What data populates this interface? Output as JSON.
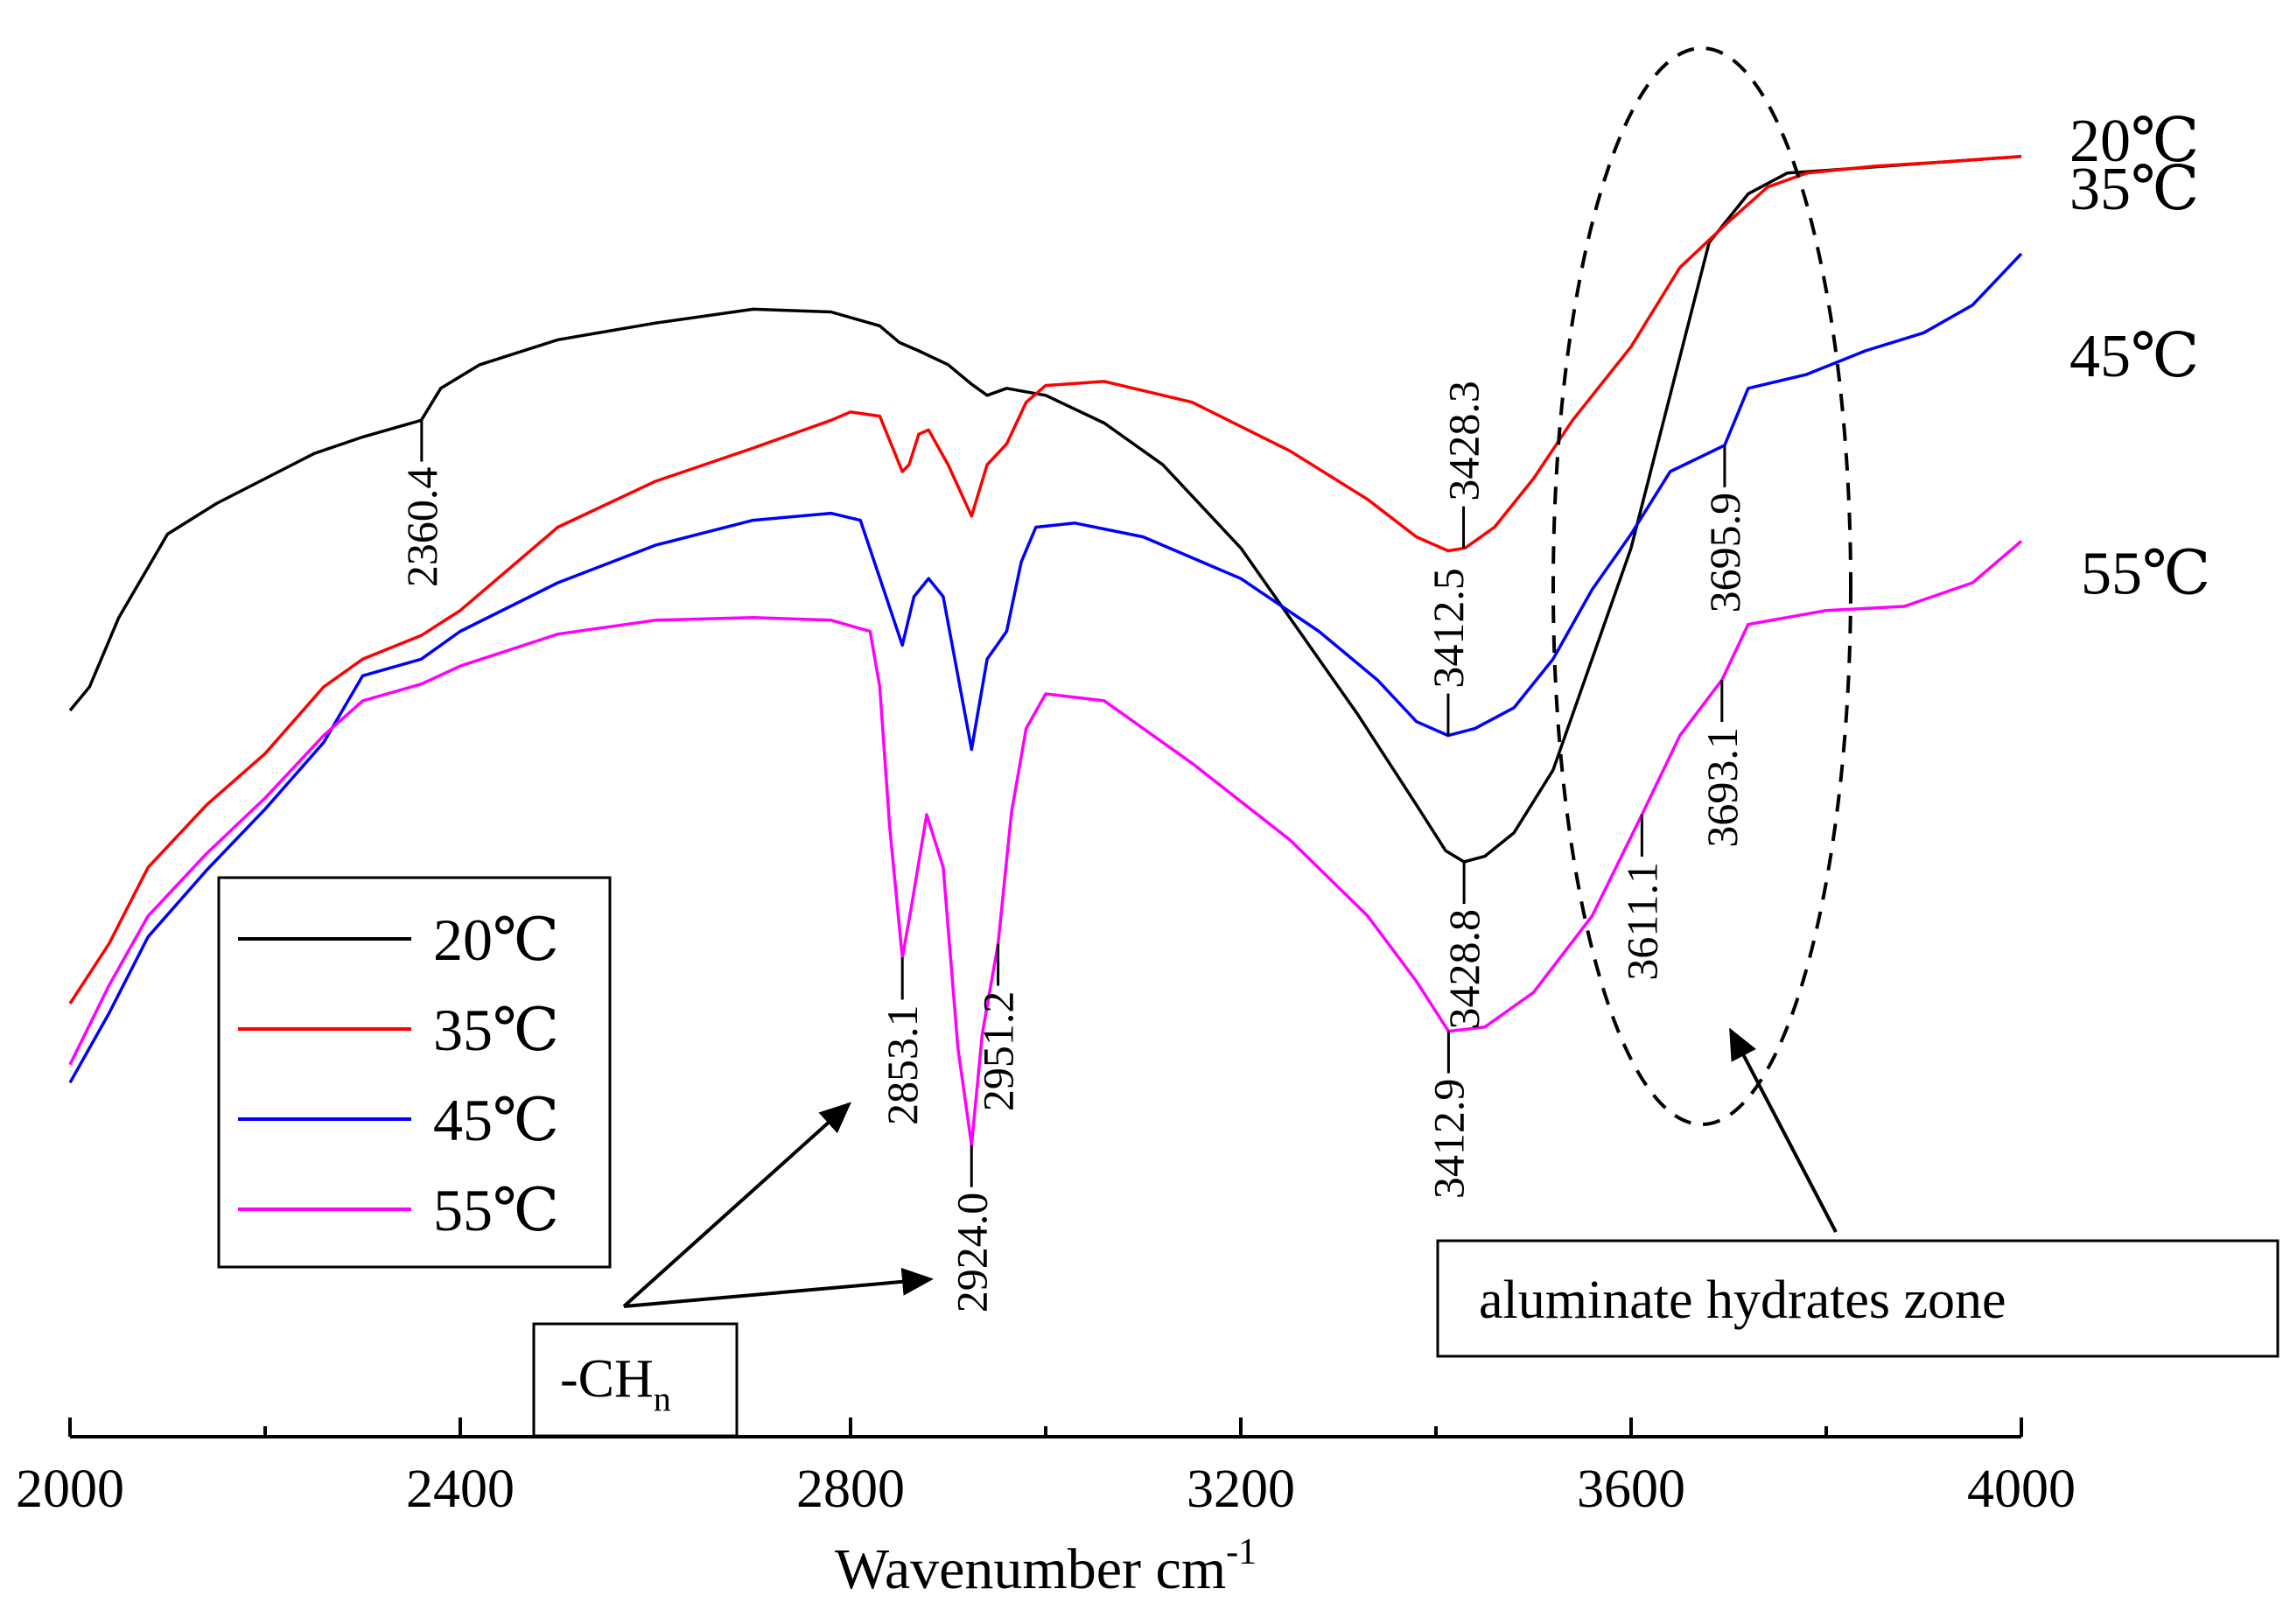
{
  "chart_data": {
    "type": "line",
    "xlabel": "Wavenumber cm",
    "xlabel_sup": "-1",
    "xlim": [
      2000,
      4000
    ],
    "xticks": [
      "2000",
      "2400",
      "2800",
      "3200",
      "3600",
      "4000"
    ],
    "xtick_values": [
      2000,
      2400,
      2800,
      3200,
      3600,
      4000
    ],
    "grid": false,
    "legend_placement": "lower-left",
    "series": [
      {
        "name": "20℃",
        "color": "#000000",
        "points": [
          [
            2000,
            0.477
          ],
          [
            2020,
            0.46
          ],
          [
            2050,
            0.41
          ],
          [
            2100,
            0.35
          ],
          [
            2150,
            0.328
          ],
          [
            2200,
            0.31
          ],
          [
            2250,
            0.292
          ],
          [
            2300,
            0.28
          ],
          [
            2340,
            0.272
          ],
          [
            2360,
            0.268
          ],
          [
            2380,
            0.245
          ],
          [
            2420,
            0.228
          ],
          [
            2500,
            0.21
          ],
          [
            2600,
            0.198
          ],
          [
            2700,
            0.188
          ],
          [
            2780,
            0.19
          ],
          [
            2830,
            0.2
          ],
          [
            2850,
            0.212
          ],
          [
            2870,
            0.218
          ],
          [
            2900,
            0.228
          ],
          [
            2924,
            0.242
          ],
          [
            2940,
            0.25
          ],
          [
            2960,
            0.245
          ],
          [
            3000,
            0.25
          ],
          [
            3060,
            0.27
          ],
          [
            3120,
            0.3
          ],
          [
            3200,
            0.36
          ],
          [
            3260,
            0.42
          ],
          [
            3320,
            0.48
          ],
          [
            3380,
            0.545
          ],
          [
            3410,
            0.578
          ],
          [
            3428.8,
            0.586
          ],
          [
            3450,
            0.582
          ],
          [
            3480,
            0.565
          ],
          [
            3520,
            0.52
          ],
          [
            3560,
            0.44
          ],
          [
            3600,
            0.36
          ],
          [
            3640,
            0.25
          ],
          [
            3680,
            0.14
          ],
          [
            3720,
            0.105
          ],
          [
            3760,
            0.09
          ],
          [
            3800,
            0.088
          ],
          [
            3860,
            0.085
          ],
          [
            3920,
            0.082
          ],
          [
            4000,
            0.078
          ]
        ]
      },
      {
        "name": "35℃",
        "color": "#ff0000",
        "points": [
          [
            2000,
            0.688
          ],
          [
            2040,
            0.645
          ],
          [
            2080,
            0.59
          ],
          [
            2140,
            0.545
          ],
          [
            2200,
            0.508
          ],
          [
            2260,
            0.46
          ],
          [
            2300,
            0.44
          ],
          [
            2360,
            0.423
          ],
          [
            2400,
            0.405
          ],
          [
            2500,
            0.345
          ],
          [
            2600,
            0.312
          ],
          [
            2700,
            0.288
          ],
          [
            2780,
            0.268
          ],
          [
            2800,
            0.262
          ],
          [
            2830,
            0.265
          ],
          [
            2853.1,
            0.305
          ],
          [
            2860,
            0.3
          ],
          [
            2870,
            0.278
          ],
          [
            2880,
            0.275
          ],
          [
            2900,
            0.3
          ],
          [
            2924,
            0.337
          ],
          [
            2940,
            0.3
          ],
          [
            2960,
            0.285
          ],
          [
            2980,
            0.255
          ],
          [
            3000,
            0.243
          ],
          [
            3060,
            0.24
          ],
          [
            3150,
            0.255
          ],
          [
            3250,
            0.29
          ],
          [
            3330,
            0.325
          ],
          [
            3380,
            0.352
          ],
          [
            3412.5,
            0.362
          ],
          [
            3430,
            0.36
          ],
          [
            3460,
            0.345
          ],
          [
            3500,
            0.31
          ],
          [
            3540,
            0.268
          ],
          [
            3600,
            0.215
          ],
          [
            3650,
            0.158
          ],
          [
            3700,
            0.125
          ],
          [
            3740,
            0.1
          ],
          [
            3780,
            0.09
          ],
          [
            3850,
            0.085
          ],
          [
            3920,
            0.082
          ],
          [
            4000,
            0.078
          ]
        ]
      },
      {
        "name": "45℃",
        "color": "#0000ff",
        "points": [
          [
            2000,
            0.745
          ],
          [
            2040,
            0.695
          ],
          [
            2080,
            0.64
          ],
          [
            2140,
            0.592
          ],
          [
            2200,
            0.548
          ],
          [
            2260,
            0.5
          ],
          [
            2300,
            0.452
          ],
          [
            2360,
            0.44
          ],
          [
            2400,
            0.42
          ],
          [
            2500,
            0.385
          ],
          [
            2600,
            0.358
          ],
          [
            2700,
            0.34
          ],
          [
            2780,
            0.335
          ],
          [
            2810,
            0.34
          ],
          [
            2853.1,
            0.43
          ],
          [
            2865,
            0.395
          ],
          [
            2880,
            0.382
          ],
          [
            2895,
            0.395
          ],
          [
            2924,
            0.505
          ],
          [
            2940,
            0.44
          ],
          [
            2960,
            0.42
          ],
          [
            2975,
            0.37
          ],
          [
            2990,
            0.345
          ],
          [
            3030,
            0.342
          ],
          [
            3100,
            0.352
          ],
          [
            3200,
            0.382
          ],
          [
            3280,
            0.42
          ],
          [
            3340,
            0.455
          ],
          [
            3380,
            0.485
          ],
          [
            3412.5,
            0.495
          ],
          [
            3440,
            0.49
          ],
          [
            3480,
            0.475
          ],
          [
            3520,
            0.44
          ],
          [
            3560,
            0.39
          ],
          [
            3600,
            0.35
          ],
          [
            3640,
            0.305
          ],
          [
            3695.9,
            0.286
          ],
          [
            3720,
            0.245
          ],
          [
            3780,
            0.235
          ],
          [
            3840,
            0.218
          ],
          [
            3900,
            0.205
          ],
          [
            3950,
            0.185
          ],
          [
            4000,
            0.148
          ]
        ]
      },
      {
        "name": "55℃",
        "color": "#ff00ff",
        "points": [
          [
            2000,
            0.732
          ],
          [
            2040,
            0.675
          ],
          [
            2080,
            0.625
          ],
          [
            2140,
            0.58
          ],
          [
            2200,
            0.54
          ],
          [
            2260,
            0.495
          ],
          [
            2300,
            0.47
          ],
          [
            2360,
            0.458
          ],
          [
            2400,
            0.445
          ],
          [
            2500,
            0.422
          ],
          [
            2600,
            0.412
          ],
          [
            2700,
            0.41
          ],
          [
            2780,
            0.412
          ],
          [
            2820,
            0.42
          ],
          [
            2830,
            0.46
          ],
          [
            2840,
            0.56
          ],
          [
            2853.1,
            0.655
          ],
          [
            2862,
            0.62
          ],
          [
            2878,
            0.552
          ],
          [
            2895,
            0.59
          ],
          [
            2910,
            0.72
          ],
          [
            2924,
            0.79
          ],
          [
            2935,
            0.71
          ],
          [
            2951.2,
            0.645
          ],
          [
            2965,
            0.55
          ],
          [
            2980,
            0.49
          ],
          [
            3000,
            0.465
          ],
          [
            3060,
            0.47
          ],
          [
            3150,
            0.515
          ],
          [
            3250,
            0.57
          ],
          [
            3330,
            0.625
          ],
          [
            3380,
            0.672
          ],
          [
            3412.9,
            0.708
          ],
          [
            3450,
            0.705
          ],
          [
            3500,
            0.68
          ],
          [
            3560,
            0.625
          ],
          [
            3611.1,
            0.552
          ],
          [
            3650,
            0.495
          ],
          [
            3693.1,
            0.455
          ],
          [
            3720,
            0.415
          ],
          [
            3800,
            0.405
          ],
          [
            3880,
            0.402
          ],
          [
            3950,
            0.385
          ],
          [
            4000,
            0.355
          ]
        ]
      }
    ],
    "end_labels": [
      {
        "text": "20℃",
        "series": 0
      },
      {
        "text": "35℃",
        "series": 1
      },
      {
        "text": "45℃",
        "series": 2
      },
      {
        "text": "55℃",
        "series": 3
      }
    ],
    "peak_labels": [
      {
        "text": "2360.4",
        "x": 2360.4,
        "series": 0,
        "side": "below"
      },
      {
        "text": "3428.3",
        "x": 3428.3,
        "series": 1,
        "side": "above"
      },
      {
        "text": "3412.5",
        "x": 3412.5,
        "series": 2,
        "side": "above"
      },
      {
        "text": "3428.8",
        "x": 3428.8,
        "series": 0,
        "side": "below"
      },
      {
        "text": "3695.9",
        "x": 3695.9,
        "series": 2,
        "side": "below"
      },
      {
        "text": "3611.1",
        "x": 3611.1,
        "series": 3,
        "side": "below"
      },
      {
        "text": "3693.1",
        "x": 3693.1,
        "series": 3,
        "side": "below"
      },
      {
        "text": "2853.1",
        "x": 2853.1,
        "series": 3,
        "side": "below"
      },
      {
        "text": "2951.2",
        "x": 2951.2,
        "series": 3,
        "side": "below"
      },
      {
        "text": "2924.0",
        "x": 2924.0,
        "series": 3,
        "side": "below"
      },
      {
        "text": "3412.9",
        "x": 3412.9,
        "series": 3,
        "side": "below"
      }
    ],
    "annotations": {
      "ch_label": "-CH",
      "ch_sub": "n",
      "zone_label": "aluminate hydrates zone"
    }
  }
}
